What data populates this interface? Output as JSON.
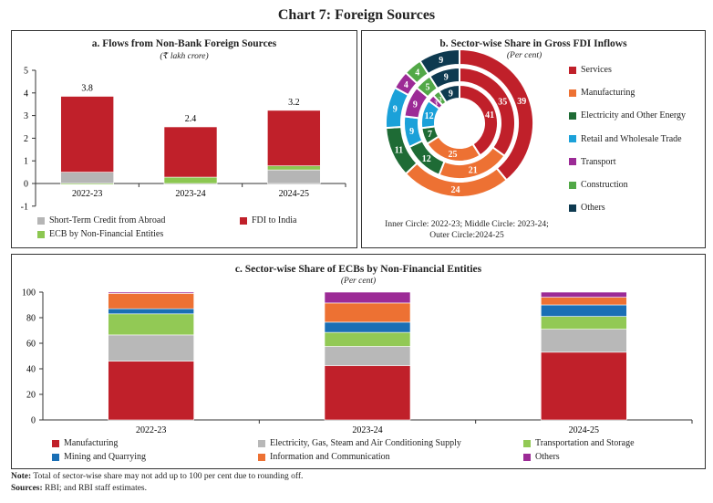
{
  "title": "Chart 7: Foreign Sources",
  "note_label": "Note:",
  "note": "Total of sector-wise share may not add up to 100 per cent due to rounding off.",
  "sources_label": "Sources:",
  "sources": "RBI; and RBI staff estimates.",
  "chart_data": [
    {
      "type": "bar",
      "stacked": true,
      "title": "a. Flows from Non-Bank Foreign Sources",
      "subtitle": "(₹ lakh crore)",
      "categories": [
        "2022-23",
        "2023-24",
        "2024-25"
      ],
      "ylim": [
        -1,
        5
      ],
      "yticks": [
        -1,
        0,
        1,
        2,
        3,
        4,
        5
      ],
      "series": [
        {
          "name": "Short-Term Credit from Abroad",
          "color": "#b5b5b5",
          "values": [
            0.5,
            -0.05,
            0.6
          ]
        },
        {
          "name": "ECB by Non-Financial Entities",
          "color": "#8cc751",
          "values": [
            -0.05,
            0.28,
            0.18
          ]
        },
        {
          "name": "FDI to India",
          "color": "#c0202a",
          "values": [
            3.35,
            2.22,
            2.45
          ]
        }
      ],
      "totals": [
        "3.8",
        "2.4",
        "3.2"
      ],
      "legend_order": [
        0,
        2,
        1
      ]
    },
    {
      "type": "pie",
      "donut": true,
      "title": "b. Sector-wise Share in Gross FDI Inflows",
      "subtitle": "(Per cent)",
      "categories": [
        "Services",
        "Manufacturing",
        "Electricity and Other Energy",
        "Retail and Wholesale Trade",
        "Transport",
        "Construction",
        "Others"
      ],
      "colors": [
        "#c0202a",
        "#ed7133",
        "#1e6b35",
        "#1ba1d9",
        "#9c2b96",
        "#52a847",
        "#0e3a50"
      ],
      "rings": [
        {
          "name": "2022-23",
          "values": [
            41,
            25,
            7,
            12,
            3,
            3,
            9
          ]
        },
        {
          "name": "2023-24",
          "values": [
            35,
            21,
            12,
            9,
            9,
            5,
            9
          ]
        },
        {
          "name": "2024-25",
          "values": [
            39,
            24,
            11,
            9,
            4,
            4,
            9
          ]
        }
      ],
      "caption_1": "Inner Circle: 2022-23; Middle Circle: 2023-24;",
      "caption_2": "Outer Circle:2024-25"
    },
    {
      "type": "bar",
      "stacked": true,
      "title": "c. Sector-wise Share of ECBs by Non-Financial Entities",
      "subtitle": "(Per cent)",
      "categories": [
        "2022-23",
        "2023-24",
        "2024-25"
      ],
      "ylim": [
        0,
        100
      ],
      "yticks": [
        0,
        20,
        40,
        60,
        80,
        100
      ],
      "series": [
        {
          "name": "Manufacturing",
          "color": "#c0202a",
          "values": [
            46,
            42.5,
            53
          ]
        },
        {
          "name": "Electricity, Gas, Steam and Air Conditioning Supply",
          "color": "#b8b8b8",
          "values": [
            20.5,
            15,
            18
          ]
        },
        {
          "name": "Transportation and Storage",
          "color": "#92c955",
          "values": [
            16.5,
            11,
            10
          ]
        },
        {
          "name": "Mining and Quarrying",
          "color": "#1a6fb5",
          "values": [
            4,
            8,
            9
          ]
        },
        {
          "name": "Information and Communication",
          "color": "#ed7133",
          "values": [
            12,
            15,
            6
          ]
        },
        {
          "name": "Others",
          "color": "#9c2b96",
          "values": [
            1,
            8.5,
            4
          ]
        }
      ],
      "legend_order": [
        0,
        1,
        2,
        3,
        4,
        5
      ]
    }
  ]
}
